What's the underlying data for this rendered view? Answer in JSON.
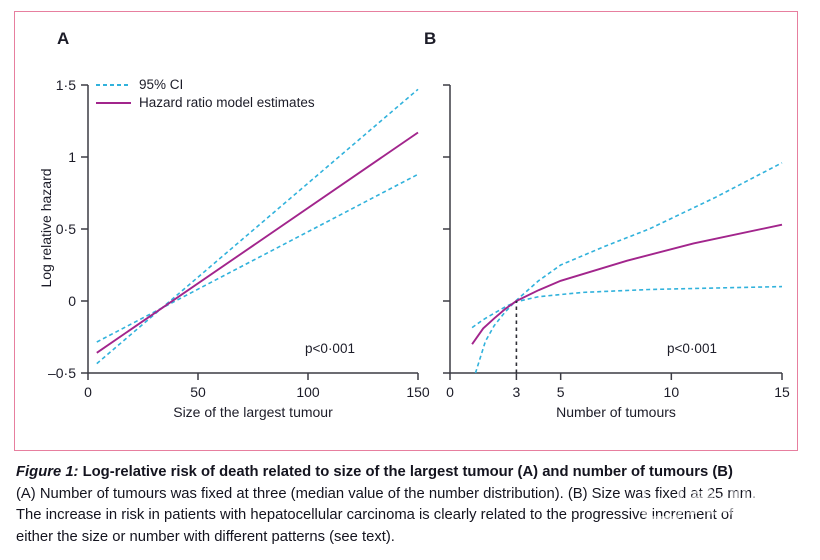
{
  "figure": {
    "border_color": "#e77f9f",
    "panel_a_label": "A",
    "panel_b_label": "B",
    "y_axis_title": "Log relative hazard",
    "legend": {
      "items": [
        {
          "label": "95% CI",
          "style": "dashed",
          "color": "#31b2dc"
        },
        {
          "label": "Hazard ratio model estimates",
          "style": "solid",
          "color": "#a2258c"
        }
      ]
    }
  },
  "chart_data": [
    {
      "id": "A",
      "type": "line",
      "panel_label": "A",
      "xlabel": "Size of the largest tumour",
      "ylabel": "Log relative hazard",
      "xlim": [
        0,
        150
      ],
      "ylim": [
        -0.5,
        1.5
      ],
      "grid": false,
      "annotation": "p<0·001",
      "xticks": [
        {
          "v": 0,
          "label": "0"
        },
        {
          "v": 50,
          "label": "50"
        },
        {
          "v": 100,
          "label": "100"
        },
        {
          "v": 150,
          "label": "150"
        }
      ],
      "yticks": [
        {
          "v": 1.5,
          "label": "1·5"
        },
        {
          "v": 1,
          "label": "1"
        },
        {
          "v": 0.5,
          "label": "0·5"
        },
        {
          "v": 0,
          "label": "0"
        },
        {
          "v": -0.5,
          "label": "–0·5"
        }
      ],
      "series": [
        {
          "name": "95% CI (upper at left)",
          "style": "dashed",
          "color": "#31b2dc",
          "points": [
            [
              4,
              -0.285
            ],
            [
              150,
              0.88
            ]
          ]
        },
        {
          "name": "95% CI (lower at left)",
          "style": "dashed",
          "color": "#31b2dc",
          "points": [
            [
              4,
              -0.435
            ],
            [
              150,
              1.47
            ]
          ]
        },
        {
          "name": "Hazard ratio model estimates",
          "style": "solid",
          "color": "#a2258c",
          "points": [
            [
              4,
              -0.36
            ],
            [
              150,
              1.17
            ]
          ]
        }
      ]
    },
    {
      "id": "B",
      "type": "line",
      "panel_label": "B",
      "xlabel": "Number of tumours",
      "ylabel": "",
      "xlim": [
        0,
        15
      ],
      "ylim": [
        -0.5,
        1.5
      ],
      "grid": false,
      "annotation": "p<0·001",
      "xticks": [
        {
          "v": 0,
          "label": "0"
        },
        {
          "v": 3,
          "label": "3"
        },
        {
          "v": 5,
          "label": "5"
        },
        {
          "v": 10,
          "label": "10"
        },
        {
          "v": 15,
          "label": "15"
        }
      ],
      "yticks": [
        {
          "v": 1.5,
          "label": ""
        },
        {
          "v": 1,
          "label": ""
        },
        {
          "v": 0.5,
          "label": ""
        },
        {
          "v": 0,
          "label": ""
        },
        {
          "v": -0.5,
          "label": ""
        }
      ],
      "series": [
        {
          "name": "95% CI (upper at left)",
          "style": "dashed",
          "color": "#31b2dc",
          "points": [
            [
              1,
              -0.185
            ],
            [
              1.5,
              -0.13
            ],
            [
              2,
              -0.085
            ],
            [
              2.5,
              -0.04
            ],
            [
              3,
              -0.005
            ],
            [
              4,
              0.03
            ],
            [
              6,
              0.06
            ],
            [
              9,
              0.08
            ],
            [
              12,
              0.09
            ],
            [
              15,
              0.1
            ]
          ]
        },
        {
          "name": "95% CI (lower at left)",
          "style": "dashed",
          "color": "#31b2dc",
          "points": [
            [
              1.15,
              -0.5
            ],
            [
              1.6,
              -0.28
            ],
            [
              2,
              -0.17
            ],
            [
              2.5,
              -0.075
            ],
            [
              3,
              0.005
            ],
            [
              4,
              0.14
            ],
            [
              5,
              0.25
            ],
            [
              7,
              0.38
            ],
            [
              9,
              0.5
            ],
            [
              12,
              0.72
            ],
            [
              15,
              0.96
            ]
          ]
        },
        {
          "name": "Hazard ratio model estimates",
          "style": "solid",
          "color": "#a2258c",
          "points": [
            [
              1,
              -0.3
            ],
            [
              1.5,
              -0.19
            ],
            [
              2,
              -0.12
            ],
            [
              2.5,
              -0.055
            ],
            [
              3,
              0
            ],
            [
              4,
              0.075
            ],
            [
              5,
              0.14
            ],
            [
              8,
              0.28
            ],
            [
              11,
              0.4
            ],
            [
              15,
              0.53
            ]
          ]
        },
        {
          "name": "reference line at 3 tumours",
          "style": "refdash",
          "color": "#2e2e36",
          "points": [
            [
              3,
              -0.5
            ],
            [
              3,
              0
            ]
          ]
        }
      ]
    }
  ],
  "caption": {
    "figure_label": "Figure 1:",
    "title": " Log-relative risk of death related to size of the largest tumour (A) and number of tumours (B)",
    "line2": "(A) Number of tumours was fixed at three (median value of the number distribution). (B) Size was fixed at 25 mm.",
    "line3": "The increase in risk in patients with hepatocellular carcinoma is clearly related to the progressive increment of",
    "line4": "either the size or number with different patterns (see text)."
  },
  "watermark": {
    "icon_glyph": "⟨",
    "text": "美训会",
    "subtext": "MEDIPHOTOGROUP"
  }
}
